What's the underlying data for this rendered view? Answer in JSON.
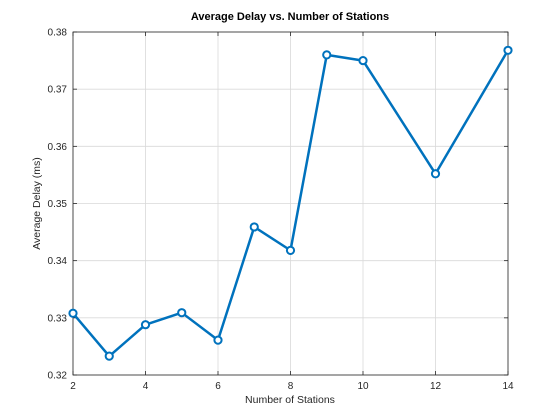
{
  "chart_data": {
    "type": "line",
    "title": "Average Delay vs. Number of Stations",
    "xlabel": "Number of Stations",
    "ylabel": "Average Delay (ms)",
    "xlim": [
      2,
      14
    ],
    "ylim": [
      0.32,
      0.38
    ],
    "xticks": [
      2,
      4,
      6,
      8,
      10,
      12,
      14
    ],
    "yticks": [
      0.32,
      0.33,
      0.34,
      0.35,
      0.36,
      0.37,
      0.38
    ],
    "grid": true,
    "series": [
      {
        "color": "#0072BD",
        "marker": "circle",
        "x": [
          2,
          3,
          4,
          5,
          6,
          7,
          8,
          9,
          10,
          12,
          14
        ],
        "y": [
          0.3308,
          0.3233,
          0.3288,
          0.3309,
          0.3261,
          0.3459,
          0.3418,
          0.376,
          0.375,
          0.3552,
          0.3768
        ]
      }
    ]
  }
}
